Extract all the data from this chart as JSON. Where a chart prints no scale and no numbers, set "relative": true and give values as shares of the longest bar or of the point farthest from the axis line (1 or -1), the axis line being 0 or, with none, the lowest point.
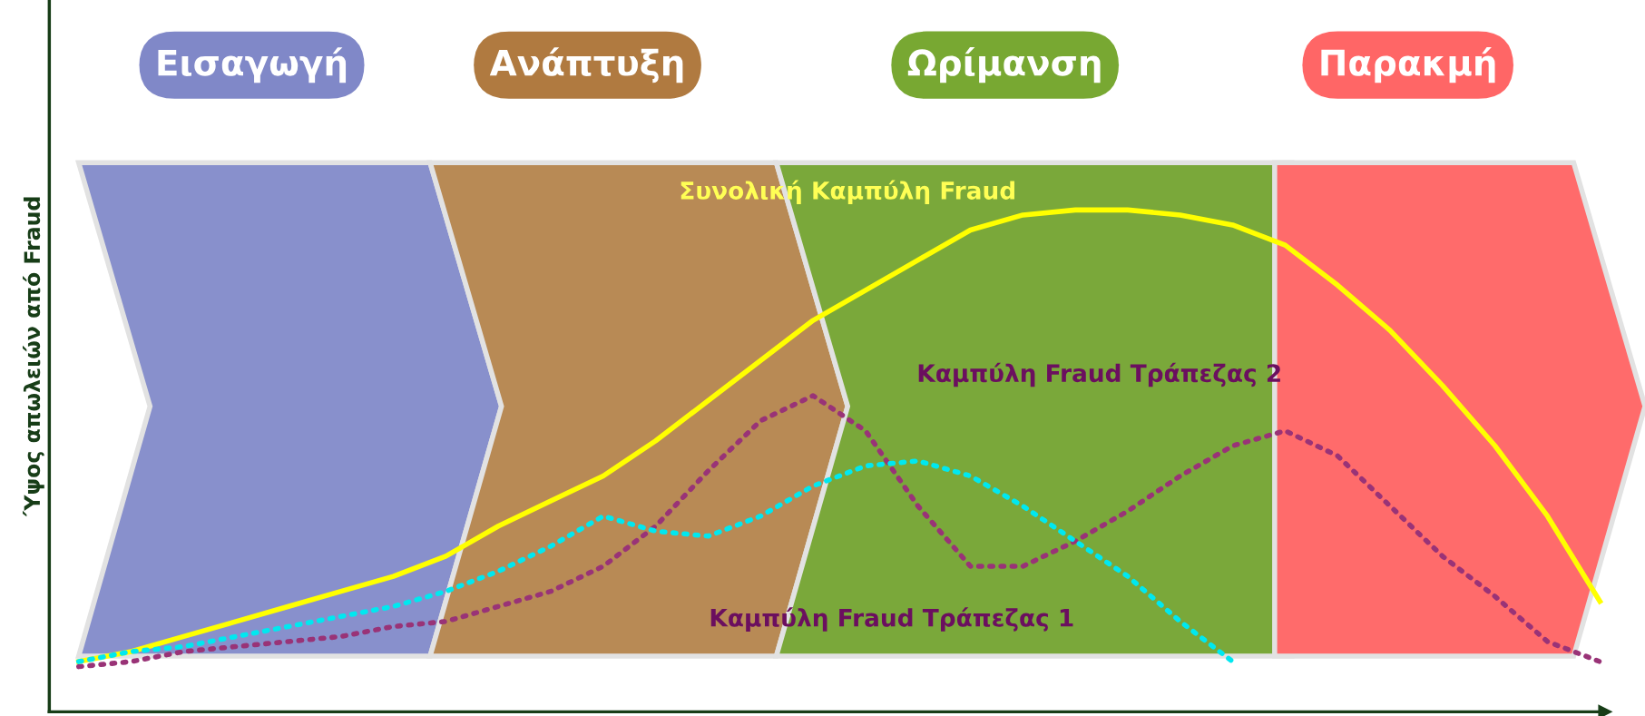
{
  "chart_data": {
    "type": "line",
    "relative": true,
    "ylabel": "Ύψος απωλειών από Fraud",
    "annotations": [
      "Εισαγωγή",
      "Ανάπτυξη",
      "Ωρίμανση",
      "Παρακμή"
    ],
    "categories": [
      null,
      null,
      null,
      null,
      null,
      null,
      null,
      null,
      null,
      null,
      null,
      null,
      null,
      null,
      null,
      null,
      null,
      null,
      null,
      null,
      null,
      null,
      null,
      null,
      null,
      null,
      null,
      null,
      null,
      null
    ],
    "series": [
      {
        "name": "Συνολική Καμπύλη Fraud",
        "color": "#ffff00",
        "line_style": "solid",
        "values": [
          0.1,
          0.12,
          0.15,
          0.18,
          0.21,
          0.24,
          0.27,
          0.31,
          0.37,
          0.42,
          0.47,
          0.54,
          0.62,
          0.7,
          0.78,
          0.84,
          0.9,
          0.96,
          0.99,
          1.0,
          1.0,
          0.99,
          0.97,
          0.93,
          0.85,
          0.76,
          0.65,
          0.53,
          0.39,
          0.22
        ]
      },
      {
        "name": "Καμπύλη Fraud Τράπεζας 1",
        "color": "#00e8f0",
        "line_style": "dotted",
        "values": [
          0.1,
          0.12,
          0.13,
          0.15,
          0.17,
          0.19,
          0.21,
          0.24,
          0.28,
          0.33,
          0.39,
          0.36,
          0.35,
          0.39,
          0.45,
          0.49,
          0.5,
          0.47,
          0.41,
          0.34,
          0.27,
          0.18,
          0.1,
          null,
          null,
          null,
          null,
          null,
          null,
          null
        ]
      },
      {
        "name": "Καμπύλη Fraud Τράπεζας 2",
        "color": "#993377",
        "line_style": "dotted",
        "values": [
          0.09,
          0.1,
          0.12,
          0.13,
          0.14,
          0.15,
          0.17,
          0.18,
          0.21,
          0.24,
          0.29,
          0.37,
          0.48,
          0.58,
          0.63,
          0.56,
          0.41,
          0.29,
          0.29,
          0.34,
          0.4,
          0.47,
          0.53,
          0.56,
          0.51,
          0.41,
          0.31,
          0.23,
          0.14,
          0.1
        ]
      }
    ],
    "legend": false,
    "marker": "none"
  }
}
